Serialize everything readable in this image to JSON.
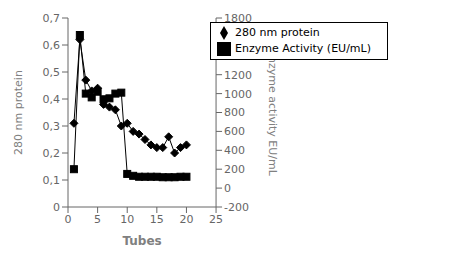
{
  "chart_data": {
    "type": "line",
    "xlabel": "Tubes",
    "ylabel": "280 nm protein",
    "y2label": "Enzyme activity EU/mL",
    "x": [
      1,
      2,
      3,
      4,
      5,
      6,
      7,
      8,
      9,
      10,
      11,
      12,
      13,
      14,
      15,
      16,
      17,
      18,
      19,
      20
    ],
    "series": [
      {
        "name": "280 nm protein",
        "color": "black",
        "marker": "diamond",
        "values": [
          0.31,
          0.62,
          0.47,
          0.43,
          0.44,
          0.38,
          0.37,
          0.36,
          0.3,
          0.31,
          0.28,
          0.27,
          0.25,
          0.23,
          0.22,
          0.22,
          0.26,
          0.2,
          0.22,
          0.23
        ]
      },
      {
        "name": "Enzyme Activity (EU/mL)",
        "color": "black",
        "marker": "square",
        "axis": "y2",
        "values": [
          200,
          1620,
          1000,
          960,
          1020,
          940,
          950,
          1000,
          1010,
          150,
          130,
          120,
          120,
          120,
          120,
          115,
          115,
          115,
          120,
          120
        ]
      }
    ],
    "xlim": [
      0,
      25
    ],
    "xticks": [
      0,
      5,
      10,
      15,
      20,
      25
    ],
    "ylim": [
      0,
      0.7
    ],
    "yticks": [
      0,
      {
        "value": 0.1,
        "label": "0,1"
      },
      {
        "value": 0.2,
        "label": "0,2"
      },
      {
        "value": 0.3,
        "label": "0,3"
      },
      {
        "value": 0.4,
        "label": "0,4"
      },
      {
        "value": 0.5,
        "label": "0,5"
      },
      {
        "value": 0.6,
        "label": "0,6"
      },
      {
        "value": 0.7,
        "label": "0,7"
      }
    ],
    "y2lim": [
      -200,
      1800
    ],
    "y2ticks": [
      -200,
      0,
      200,
      400,
      600,
      800,
      1000,
      1200,
      1400,
      1600,
      1800
    ],
    "grid": false,
    "legend": "upper right"
  }
}
